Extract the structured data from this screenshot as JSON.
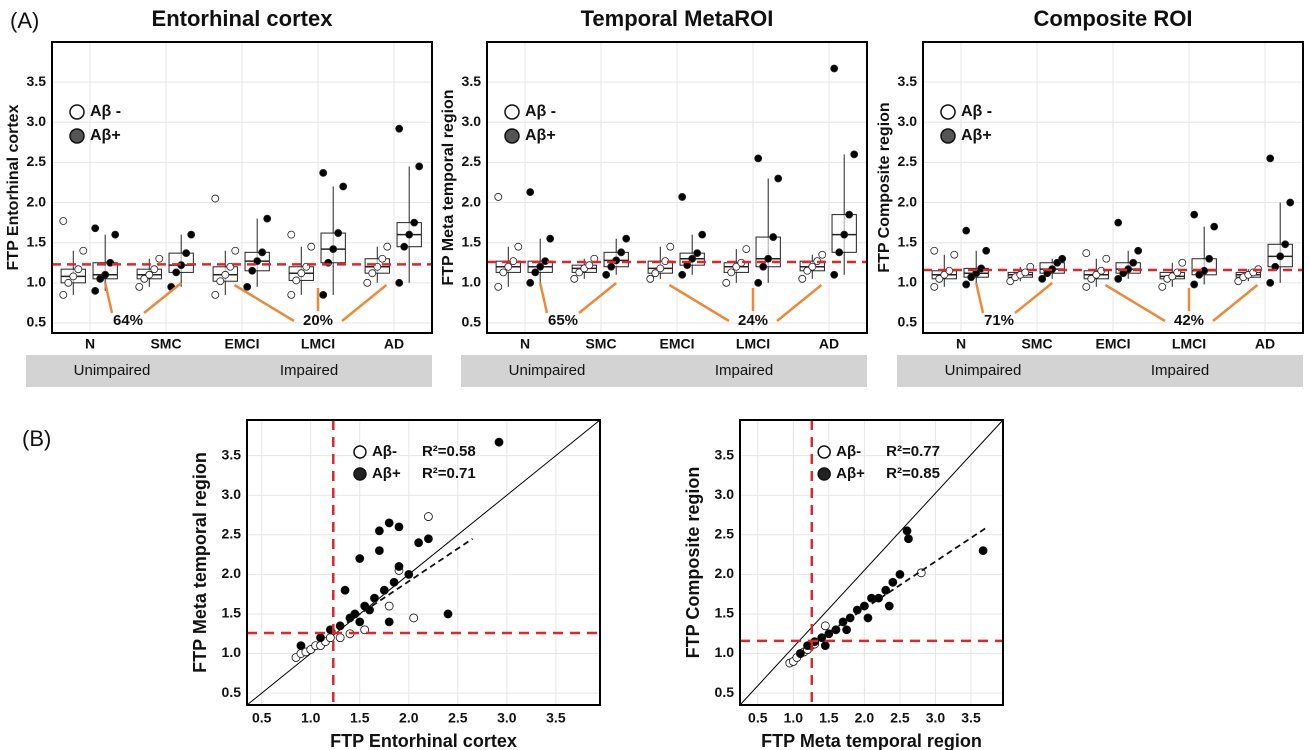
{
  "panel_labels": [
    "(A)",
    "(B)"
  ],
  "chart_data": [
    {
      "type": "box",
      "title": "Entorhinal cortex",
      "y_label": "FTP Entorhinal cortex",
      "categories": [
        "N",
        "SMC",
        "EMCI",
        "LMCI",
        "AD"
      ],
      "groups": [
        "Unimpaired",
        "Impaired"
      ],
      "annotations": [
        "64%",
        "20%"
      ],
      "threshold": 1.23,
      "grid": true,
      "ylim": [
        0.375,
        4.0
      ],
      "yticks": [
        0.5,
        {
          "value": 1,
          "label": "1.0"
        },
        1.5,
        {
          "value": 2,
          "label": "2.0"
        },
        2.5,
        {
          "value": 3,
          "label": "3.0"
        },
        3.5
      ],
      "series": [
        {
          "name": "Aβ -",
          "color": "#ffffff",
          "boxes": [
            [
              0.85,
              1.0,
              1.08,
              1.17,
              1.4
            ],
            [
              0.95,
              1.05,
              1.1,
              1.17,
              1.3
            ],
            [
              0.85,
              1.02,
              1.1,
              1.2,
              1.4
            ],
            [
              0.85,
              1.03,
              1.12,
              1.2,
              1.45
            ],
            [
              1.0,
              1.12,
              1.2,
              1.3,
              1.45
            ]
          ],
          "points": [
            [
              0.85,
              1.0,
              1.08,
              1.17,
              1.4,
              1.77
            ],
            [
              0.95,
              1.05,
              1.1,
              1.17,
              1.3
            ],
            [
              0.85,
              1.02,
              1.1,
              1.2,
              1.4,
              2.05
            ],
            [
              0.85,
              1.03,
              1.12,
              1.2,
              1.45,
              1.6
            ],
            [
              1.0,
              1.12,
              1.2,
              1.3,
              1.45
            ]
          ]
        },
        {
          "name": "Aβ+",
          "color": "#000000",
          "boxes": [
            [
              0.9,
              1.05,
              1.1,
              1.25,
              1.6
            ],
            [
              0.95,
              1.13,
              1.22,
              1.37,
              1.6
            ],
            [
              0.95,
              1.15,
              1.27,
              1.38,
              1.8
            ],
            [
              0.85,
              1.25,
              1.42,
              1.62,
              2.2
            ],
            [
              1.0,
              1.45,
              1.6,
              1.75,
              2.45
            ]
          ],
          "points": [
            [
              0.9,
              1.05,
              1.1,
              1.25,
              1.6,
              1.68
            ],
            [
              0.95,
              1.13,
              1.22,
              1.37,
              1.6
            ],
            [
              0.95,
              1.15,
              1.27,
              1.38,
              1.8
            ],
            [
              0.85,
              1.25,
              1.42,
              1.62,
              2.2,
              2.37
            ],
            [
              1.0,
              1.45,
              1.6,
              1.75,
              2.45,
              2.92
            ]
          ]
        }
      ]
    },
    {
      "type": "box",
      "title": "Temporal MetaROI",
      "y_label": "FTP Meta temporal region",
      "categories": [
        "N",
        "SMC",
        "EMCI",
        "LMCI",
        "AD"
      ],
      "groups": [
        "Unimpaired",
        "Impaired"
      ],
      "annotations": [
        "65%",
        "24%"
      ],
      "threshold": 1.26,
      "grid": true,
      "ylim": [
        0.375,
        4.0
      ],
      "yticks": [
        0.5,
        {
          "value": 1,
          "label": "1.0"
        },
        1.5,
        {
          "value": 2,
          "label": "2.0"
        },
        2.5,
        {
          "value": 3,
          "label": "3.0"
        },
        3.5
      ],
      "series": [
        {
          "name": "Aβ -",
          "color": "#ffffff",
          "boxes": [
            [
              0.95,
              1.13,
              1.2,
              1.27,
              1.45
            ],
            [
              1.05,
              1.13,
              1.18,
              1.22,
              1.3
            ],
            [
              1.05,
              1.12,
              1.18,
              1.27,
              1.45
            ],
            [
              1.0,
              1.13,
              1.2,
              1.25,
              1.42
            ],
            [
              1.05,
              1.15,
              1.2,
              1.27,
              1.35
            ]
          ],
          "points": [
            [
              0.95,
              1.13,
              1.2,
              1.27,
              1.45,
              2.07
            ],
            [
              1.05,
              1.13,
              1.18,
              1.22,
              1.3
            ],
            [
              1.05,
              1.12,
              1.18,
              1.27,
              1.45
            ],
            [
              1.0,
              1.13,
              1.2,
              1.25,
              1.42
            ],
            [
              1.05,
              1.15,
              1.2,
              1.27,
              1.35
            ]
          ]
        },
        {
          "name": "Aβ+",
          "color": "#000000",
          "boxes": [
            [
              1.0,
              1.13,
              1.2,
              1.27,
              1.55
            ],
            [
              1.1,
              1.2,
              1.28,
              1.38,
              1.55
            ],
            [
              1.1,
              1.22,
              1.3,
              1.37,
              1.6
            ],
            [
              1.0,
              1.2,
              1.3,
              1.57,
              2.3
            ],
            [
              1.1,
              1.38,
              1.6,
              1.85,
              2.6
            ]
          ],
          "points": [
            [
              1.0,
              1.13,
              1.2,
              1.27,
              1.55,
              2.13
            ],
            [
              1.1,
              1.2,
              1.28,
              1.38,
              1.55
            ],
            [
              1.1,
              1.22,
              1.3,
              1.37,
              1.6,
              2.07
            ],
            [
              1.0,
              1.2,
              1.3,
              1.57,
              2.3,
              2.55
            ],
            [
              1.1,
              1.38,
              1.6,
              1.85,
              2.6,
              3.67
            ]
          ]
        }
      ]
    },
    {
      "type": "box",
      "title": "Composite ROI",
      "y_label": "FTP Composite region",
      "categories": [
        "N",
        "SMC",
        "EMCI",
        "LMCI",
        "AD"
      ],
      "groups": [
        "Unimpaired",
        "Impaired"
      ],
      "annotations": [
        "71%",
        "42%"
      ],
      "threshold": 1.16,
      "grid": true,
      "ylim": [
        0.375,
        4.0
      ],
      "yticks": [
        0.5,
        {
          "value": 1,
          "label": "1.0"
        },
        1.5,
        {
          "value": 2,
          "label": "2.0"
        },
        2.5,
        {
          "value": 3,
          "label": "3.0"
        },
        3.5
      ],
      "series": [
        {
          "name": "Aβ -",
          "color": "#ffffff",
          "boxes": [
            [
              0.95,
              1.05,
              1.1,
              1.15,
              1.35
            ],
            [
              1.02,
              1.07,
              1.1,
              1.13,
              1.2
            ],
            [
              0.95,
              1.05,
              1.1,
              1.15,
              1.3
            ],
            [
              0.95,
              1.05,
              1.08,
              1.13,
              1.25
            ],
            [
              1.02,
              1.07,
              1.1,
              1.13,
              1.17
            ]
          ],
          "points": [
            [
              0.95,
              1.05,
              1.1,
              1.15,
              1.35,
              1.4
            ],
            [
              1.02,
              1.07,
              1.1,
              1.13,
              1.2
            ],
            [
              0.95,
              1.05,
              1.1,
              1.15,
              1.3,
              1.37
            ],
            [
              0.95,
              1.05,
              1.08,
              1.13,
              1.25
            ],
            [
              1.02,
              1.07,
              1.1,
              1.13,
              1.17
            ]
          ]
        },
        {
          "name": "Aβ+",
          "color": "#000000",
          "boxes": [
            [
              0.98,
              1.07,
              1.12,
              1.18,
              1.4
            ],
            [
              1.05,
              1.12,
              1.17,
              1.25,
              1.3
            ],
            [
              1.05,
              1.12,
              1.17,
              1.25,
              1.4
            ],
            [
              0.98,
              1.1,
              1.15,
              1.3,
              1.7
            ],
            [
              1.0,
              1.2,
              1.33,
              1.48,
              2.0
            ]
          ],
          "points": [
            [
              0.98,
              1.07,
              1.12,
              1.18,
              1.4,
              1.65
            ],
            [
              1.05,
              1.12,
              1.17,
              1.25,
              1.3
            ],
            [
              1.05,
              1.12,
              1.17,
              1.25,
              1.4,
              1.75
            ],
            [
              0.98,
              1.1,
              1.15,
              1.3,
              1.7,
              1.85
            ],
            [
              1.0,
              1.2,
              1.33,
              1.48,
              2.0,
              2.55
            ]
          ]
        }
      ]
    },
    {
      "type": "scatter",
      "x_label": "FTP Entorhinal cortex",
      "y_label": "FTP Meta temporal region",
      "grid": true,
      "thresholds": {
        "x": 1.23,
        "y": 1.26
      },
      "trend": {
        "x": [
          1.2,
          2.65
        ],
        "y": [
          1.25,
          2.45
        ]
      },
      "xlim": [
        0.35,
        3.95
      ],
      "ylim": [
        0.35,
        3.95
      ],
      "xticks": [
        0.5,
        {
          "value": 1,
          "label": "1.0"
        },
        1.5,
        {
          "value": 2,
          "label": "2.0"
        },
        2.5,
        {
          "value": 3,
          "label": "3.0"
        },
        3.5
      ],
      "yticks": [
        0.5,
        {
          "value": 1,
          "label": "1.0"
        },
        1.5,
        {
          "value": 2,
          "label": "2.0"
        },
        2.5,
        {
          "value": 3,
          "label": "3.0"
        },
        3.5
      ],
      "series": [
        {
          "name": "Aβ-",
          "r2": "R²=0.58",
          "color": "#ffffff",
          "x": [
            0.85,
            0.9,
            0.95,
            1.0,
            1.05,
            1.1,
            1.15,
            1.2,
            1.3,
            1.4,
            1.55,
            1.8,
            1.9,
            2.05,
            2.2
          ],
          "y": [
            0.95,
            1.0,
            1.02,
            1.05,
            1.1,
            1.1,
            1.15,
            1.2,
            1.2,
            1.25,
            1.3,
            1.6,
            2.05,
            1.45,
            2.73
          ]
        },
        {
          "name": "Aβ+",
          "r2": "R²=0.71",
          "color": "#000000",
          "x": [
            0.9,
            1.1,
            1.2,
            1.3,
            1.35,
            1.4,
            1.45,
            1.5,
            1.55,
            1.6,
            1.65,
            1.7,
            1.75,
            1.8,
            1.85,
            1.9,
            2.0,
            2.1,
            2.2,
            2.4,
            2.92,
            1.5,
            1.7,
            1.8,
            1.9
          ],
          "y": [
            1.1,
            1.2,
            1.3,
            1.35,
            1.8,
            1.45,
            1.5,
            1.4,
            1.6,
            1.55,
            1.7,
            2.55,
            1.8,
            2.65,
            1.9,
            2.1,
            2.0,
            2.4,
            2.45,
            1.5,
            3.67,
            2.2,
            2.3,
            1.4,
            2.6
          ]
        }
      ]
    },
    {
      "type": "scatter",
      "x_label": "FTP Meta temporal region",
      "y_label": "FTP Composite region",
      "grid": true,
      "thresholds": {
        "x": 1.26,
        "y": 1.16
      },
      "trend": {
        "x": [
          1.05,
          3.7
        ],
        "y": [
          1.0,
          2.58
        ]
      },
      "xlim": [
        0.25,
        3.95
      ],
      "ylim": [
        0.35,
        3.95
      ],
      "xticks": [
        0.5,
        {
          "value": 1,
          "label": "1.0"
        },
        1.5,
        {
          "value": 2,
          "label": "2.0"
        },
        2.5,
        {
          "value": 3,
          "label": "3.0"
        },
        3.5
      ],
      "yticks": [
        0.5,
        {
          "value": 1,
          "label": "1.0"
        },
        1.5,
        {
          "value": 2,
          "label": "2.0"
        },
        2.5,
        {
          "value": 3,
          "label": "3.0"
        },
        3.5
      ],
      "series": [
        {
          "name": "Aβ-",
          "r2": "R²=0.77",
          "color": "#ffffff",
          "x": [
            0.95,
            1.0,
            1.05,
            1.1,
            1.15,
            1.2,
            1.25,
            1.3,
            1.45,
            2.8
          ],
          "y": [
            0.88,
            0.9,
            0.95,
            1.0,
            1.02,
            1.05,
            1.1,
            1.12,
            1.35,
            2.02
          ]
        },
        {
          "name": "Aβ+",
          "r2": "R²=0.85",
          "color": "#000000",
          "x": [
            1.1,
            1.2,
            1.3,
            1.4,
            1.5,
            1.6,
            1.7,
            1.8,
            1.9,
            2.0,
            2.1,
            2.2,
            2.3,
            2.4,
            2.5,
            2.6,
            2.62,
            3.67,
            1.45,
            1.75,
            2.05,
            2.35
          ],
          "y": [
            1.0,
            1.1,
            1.15,
            1.2,
            1.25,
            1.3,
            1.4,
            1.45,
            1.55,
            1.6,
            1.7,
            1.7,
            1.8,
            1.9,
            2.0,
            2.55,
            2.45,
            2.3,
            1.1,
            1.3,
            1.45,
            1.6
          ]
        }
      ]
    }
  ]
}
